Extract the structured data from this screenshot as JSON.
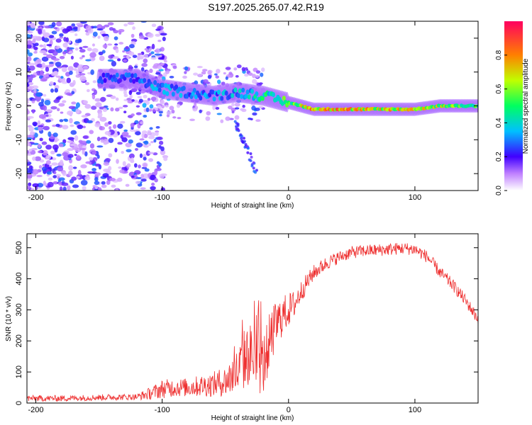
{
  "title": "S197.2025.265.07.42.R19",
  "colors": {
    "snr_line": "#ee3030",
    "axis": "#000000"
  },
  "chart_data": [
    {
      "type": "heatmap",
      "title": "S197.2025.265.07.42.R19",
      "xlabel": "Height of straight line (km)",
      "ylabel": "Frequency (Hz)",
      "xlim": [
        -207,
        150
      ],
      "ylim": [
        -25,
        25
      ],
      "xticks": [
        -200,
        -100,
        0,
        100
      ],
      "xtick_labels": [
        "-200",
        "-100",
        "0",
        "100"
      ],
      "yticks": [
        20,
        10,
        0,
        -10,
        -20
      ],
      "ytick_labels": [
        "20",
        "10",
        "0",
        "-10",
        "-20"
      ],
      "ridge": {
        "description_points_height_km": [
          -145,
          -120,
          -100,
          -80,
          -60,
          -40,
          -20,
          0,
          20,
          40,
          60,
          80,
          100,
          120,
          150
        ],
        "frequency_hz": [
          8,
          8,
          5,
          4,
          3,
          4,
          3,
          1,
          -1,
          -1,
          -1,
          -1,
          -1,
          0,
          0
        ],
        "peak_amplitude": [
          0.3,
          0.3,
          0.4,
          0.35,
          0.35,
          0.4,
          0.5,
          0.6,
          0.9,
          0.85,
          0.8,
          0.8,
          0.75,
          0.7,
          0.6
        ]
      },
      "colorbar": {
        "label": "Normalized spectral amplitude",
        "range": [
          0,
          1
        ],
        "ticks": [
          0.0,
          0.2,
          0.4,
          0.6,
          0.8
        ],
        "tick_labels": [
          "0.0",
          "0.2",
          "0.4",
          "0.6",
          "0.8"
        ]
      }
    },
    {
      "type": "line",
      "xlabel": "Height of straight line (km)",
      "ylabel": "SNR (10 * v/v)",
      "xlim": [
        -207,
        150
      ],
      "ylim": [
        0,
        545
      ],
      "xticks": [
        -200,
        -100,
        0,
        100
      ],
      "xtick_labels": [
        "-200",
        "-100",
        "0",
        "100"
      ],
      "yticks": [
        0,
        100,
        200,
        300,
        400,
        500
      ],
      "ytick_labels": [
        "0",
        "100",
        "200",
        "300",
        "400",
        "500"
      ],
      "series": [
        {
          "name": "SNR",
          "x": [
            -207,
            -180,
            -150,
            -120,
            -110,
            -100,
            -90,
            -80,
            -70,
            -60,
            -50,
            -40,
            -35,
            -30,
            -25,
            -20,
            -15,
            -10,
            -5,
            0,
            5,
            10,
            20,
            30,
            40,
            50,
            60,
            70,
            80,
            90,
            100,
            110,
            120,
            130,
            140,
            150
          ],
          "y": [
            15,
            15,
            18,
            20,
            30,
            45,
            50,
            50,
            55,
            60,
            70,
            100,
            140,
            160,
            130,
            120,
            200,
            250,
            280,
            300,
            320,
            360,
            420,
            450,
            470,
            485,
            490,
            492,
            495,
            498,
            495,
            470,
            420,
            380,
            330,
            270
          ],
          "spread": [
            20,
            20,
            20,
            20,
            40,
            60,
            60,
            60,
            70,
            80,
            100,
            160,
            200,
            200,
            200,
            200,
            180,
            160,
            130,
            110,
            90,
            70,
            50,
            45,
            40,
            40,
            40,
            40,
            40,
            40,
            40,
            40,
            40,
            40,
            40,
            40
          ]
        }
      ]
    }
  ]
}
